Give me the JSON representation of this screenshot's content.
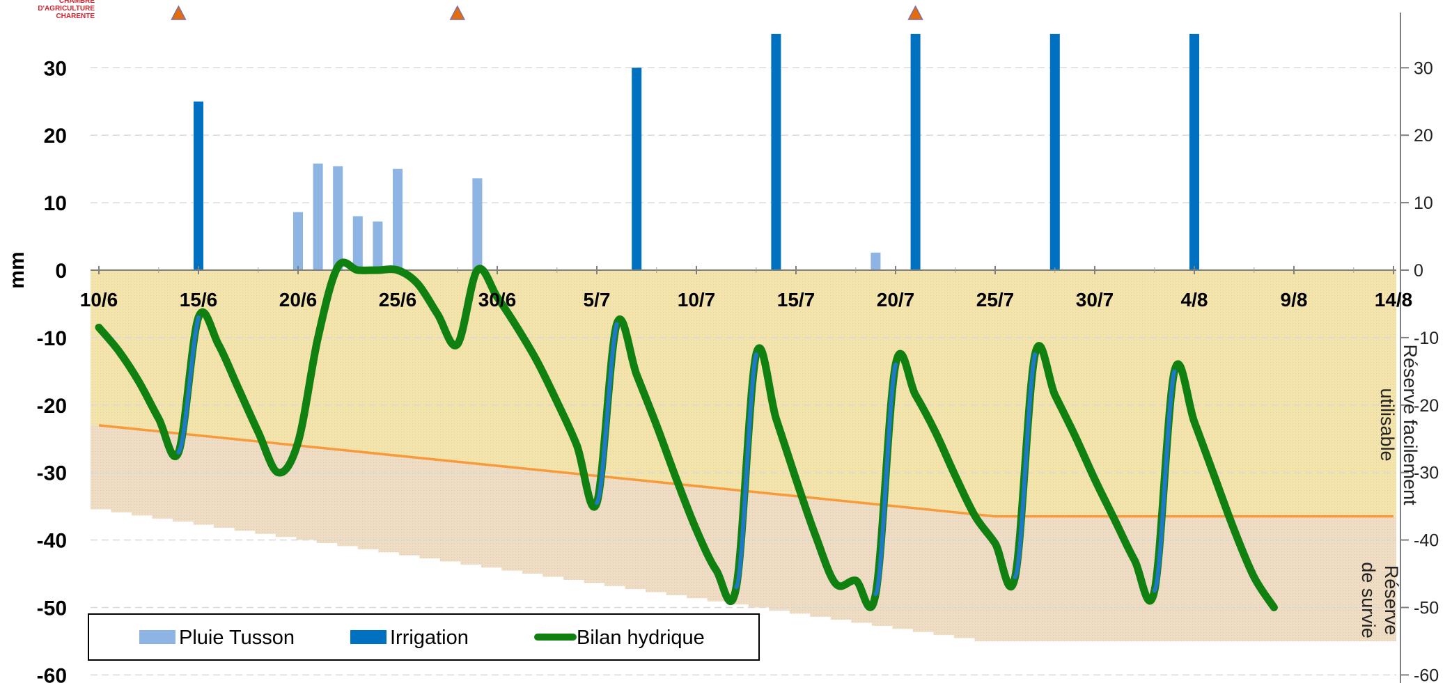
{
  "header": {
    "logo_line1": "CHAMBRE D'AGRICULTURE",
    "logo_line2": "CHARENTE"
  },
  "chart_data": {
    "type": "bar+line",
    "title": "",
    "ylabel": "mm",
    "ylim": [
      -60,
      38
    ],
    "yticks": [
      30,
      20,
      10,
      0,
      -10,
      -20,
      -30,
      -40,
      -50,
      -60
    ],
    "x_start": "10/6",
    "x_end": "14/8",
    "x_tick_labels": [
      "10/6",
      "15/6",
      "20/6",
      "25/6",
      "30/6",
      "5/7",
      "10/7",
      "15/7",
      "20/7",
      "25/7",
      "30/7",
      "4/8",
      "9/8",
      "14/8"
    ],
    "grid": "horizontal dashed",
    "legend": "bottom-left",
    "colors": {
      "rain": "#8db4e2",
      "irrigation": "#0070c0",
      "balance": "#108010",
      "balance_irrigation_rise": "#1f78c8",
      "rfu_line": "#f79a3a",
      "zone_rfu": "#f0dfa8",
      "zone_survie": "#edd9bd",
      "marker": "#e46c0a"
    },
    "markers": [
      "14/6",
      "28/6",
      "21/7"
    ],
    "series": [
      {
        "name": "Pluie Tusson",
        "type": "bar",
        "points": [
          [
            "20/6",
            8.6
          ],
          [
            "21/6",
            15.8
          ],
          [
            "22/6",
            15.4
          ],
          [
            "23/6",
            8.0
          ],
          [
            "24/6",
            7.2
          ],
          [
            "25/6",
            15.0
          ],
          [
            "29/6",
            13.6
          ],
          [
            "19/7",
            2.6
          ]
        ]
      },
      {
        "name": "Irrigation",
        "type": "bar",
        "points": [
          [
            "15/6",
            25
          ],
          [
            "7/7",
            30
          ],
          [
            "14/7",
            35
          ],
          [
            "21/7",
            35
          ],
          [
            "28/7",
            35
          ],
          [
            "4/8",
            35
          ]
        ]
      },
      {
        "name": "Bilan hydrique",
        "type": "line",
        "points": [
          [
            "10/6",
            -8.5
          ],
          [
            "11/6",
            -12.0
          ],
          [
            "12/6",
            -16.5
          ],
          [
            "13/6",
            -22.0
          ],
          [
            "14/6",
            -27.0
          ],
          [
            "15/6",
            -7.0
          ],
          [
            "16/6",
            -11.0
          ],
          [
            "17/6",
            -17.5
          ],
          [
            "18/6",
            -24.0
          ],
          [
            "19/6",
            -30.0
          ],
          [
            "20/6",
            -25.5
          ],
          [
            "21/6",
            -10.0
          ],
          [
            "22/6",
            0.5
          ],
          [
            "23/6",
            0.0
          ],
          [
            "24/6",
            0.0
          ],
          [
            "25/6",
            0.0
          ],
          [
            "26/6",
            -2.0
          ],
          [
            "27/6",
            -6.5
          ],
          [
            "28/6",
            -11.0
          ],
          [
            "29/6",
            0.0
          ],
          [
            "30/6",
            -4.0
          ],
          [
            "1/7",
            -8.5
          ],
          [
            "2/7",
            -13.5
          ],
          [
            "3/7",
            -19.5
          ],
          [
            "4/7",
            -26.0
          ],
          [
            "5/7",
            -34.5
          ],
          [
            "6/7",
            -8.0
          ],
          [
            "7/7",
            -15.5
          ],
          [
            "8/7",
            -23.0
          ],
          [
            "9/7",
            -31.0
          ],
          [
            "10/7",
            -38.5
          ],
          [
            "11/7",
            -44.5
          ],
          [
            "12/7",
            -47.0
          ],
          [
            "13/7",
            -12.5
          ],
          [
            "14/7",
            -22.0
          ],
          [
            "15/7",
            -31.0
          ],
          [
            "16/7",
            -39.5
          ],
          [
            "17/7",
            -46.5
          ],
          [
            "18/7",
            -46.0
          ],
          [
            "19/7",
            -48.0
          ],
          [
            "20/7",
            -14.0
          ],
          [
            "21/7",
            -18.5
          ],
          [
            "22/7",
            -24.0
          ],
          [
            "23/7",
            -30.5
          ],
          [
            "24/7",
            -36.5
          ],
          [
            "25/7",
            -40.5
          ],
          [
            "26/7",
            -45.5
          ],
          [
            "27/7",
            -12.5
          ],
          [
            "28/7",
            -18.5
          ],
          [
            "29/7",
            -24.5
          ],
          [
            "30/7",
            -31.0
          ],
          [
            "31/7",
            -37.0
          ],
          [
            "1/8",
            -43.0
          ],
          [
            "2/8",
            -47.5
          ],
          [
            "3/8",
            -15.0
          ],
          [
            "4/8",
            -22.5
          ],
          [
            "5/8",
            -30.5
          ],
          [
            "6/8",
            -38.5
          ],
          [
            "7/8",
            -45.5
          ],
          [
            "8/8",
            -50.0
          ]
        ],
        "irrigation_rises": [
          [
            [
              "14/6",
              -27.0
            ],
            [
              "15/6",
              -7.0
            ]
          ],
          [
            [
              "5/7",
              -34.5
            ],
            [
              "6/7",
              -8.0
            ]
          ],
          [
            [
              "12/7",
              -47.0
            ],
            [
              "13/7",
              -12.5
            ]
          ],
          [
            [
              "19/7",
              -48.0
            ],
            [
              "20/7",
              -14.0
            ]
          ],
          [
            [
              "26/7",
              -45.5
            ],
            [
              "27/7",
              -12.5
            ]
          ],
          [
            [
              "2/8",
              -47.5
            ],
            [
              "3/8",
              -15.0
            ]
          ]
        ]
      }
    ],
    "rfu_limit": {
      "points": [
        [
          "10/6",
          -23.0
        ],
        [
          "25/7",
          -36.5
        ],
        [
          "14/8",
          -36.5
        ]
      ]
    },
    "survival_limit": {
      "points": [
        [
          "10/6",
          -35.0
        ],
        [
          "25/7",
          -55.0
        ],
        [
          "14/8",
          -55.0
        ]
      ]
    },
    "zone_labels": {
      "rfu_line1": "Réserve facilement",
      "rfu_line2": "utilisable",
      "survie_line1": "Réserve",
      "survie_line2": "de survie"
    }
  }
}
